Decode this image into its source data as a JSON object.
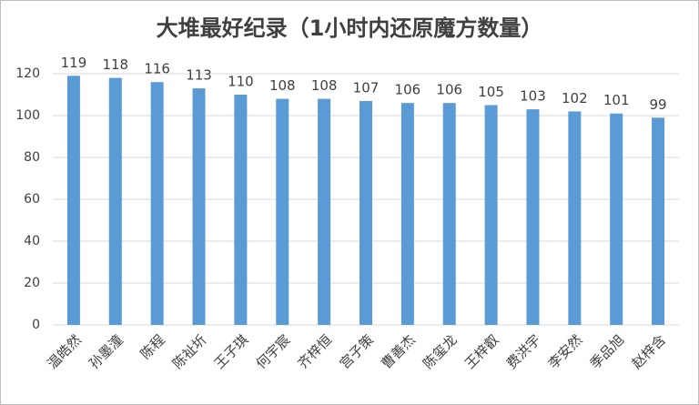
{
  "chart_data": {
    "type": "bar",
    "title": "大堆最好纪录（1小时内还原魔方数量）",
    "categories": [
      "温皓然",
      "孙墨潼",
      "陈程",
      "陈祉圻",
      "王子琪",
      "何宇宸",
      "齐梓恒",
      "宫子策",
      "曹善杰",
      "陈玺龙",
      "王梓叡",
      "费洪宇",
      "李安然",
      "季品旭",
      "赵梓含"
    ],
    "values": [
      119,
      118,
      116,
      113,
      110,
      108,
      108,
      107,
      106,
      106,
      105,
      103,
      102,
      101,
      99
    ],
    "color": "#5b9bd5",
    "ylim": [
      0,
      130
    ],
    "yticks": [
      0,
      20,
      40,
      60,
      80,
      100,
      120
    ],
    "grid": true,
    "data_labels": true
  }
}
